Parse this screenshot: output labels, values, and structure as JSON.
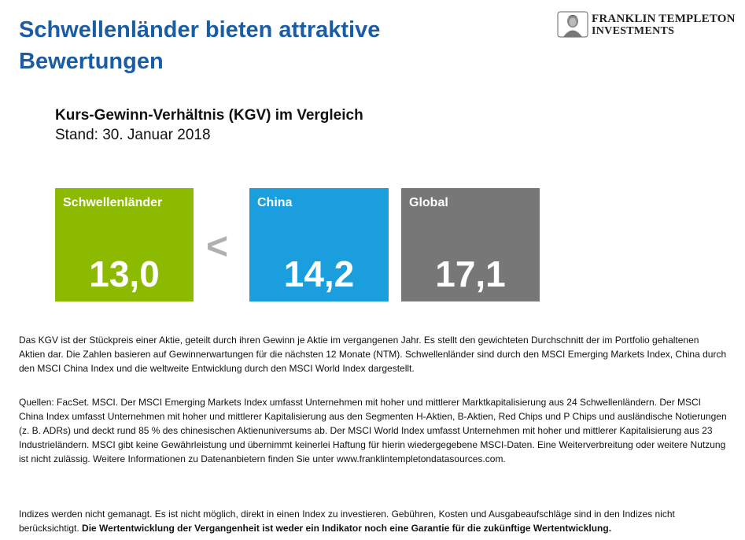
{
  "header": {
    "title": "Schwellenländer bieten attraktive Bewertungen",
    "logo_line1": "FRANKLIN TEMPLETON",
    "logo_line2": "INVESTMENTS"
  },
  "comparison": {
    "subtitle": "Kurs-Gewinn-Verhältnis  (KGV) im Vergleich",
    "stand": "Stand: 30. Januar 2018",
    "less_than": "<",
    "boxes": [
      {
        "label": "Schwellenländer",
        "value": "13,0",
        "color": "#8cba00"
      },
      {
        "label": "China",
        "value": "14,2",
        "color": "#1a9ede"
      },
      {
        "label": "Global",
        "value": "17,1",
        "color": "#777777"
      }
    ]
  },
  "notes": {
    "p1": "Das KGV ist der Stückpreis einer Aktie, geteilt durch ihren Gewinn je Aktie im vergangenen Jahr. Es stellt den gewichteten Durchschnitt der im Portfolio gehaltenen Aktien dar. Die Zahlen basieren auf Gewinnerwartungen für die nächsten 12 Monate (NTM).  Schwellenländer sind durch den MSCI Emerging Markets Index, China durch den MSCI China Index und die weltweite Entwicklung durch den MSCI World Index dargestellt.",
    "p2": "Quellen: FacSet. MSCI. Der MSCI Emerging Markets Index umfasst Unternehmen mit hoher und mittlerer Marktkapitalisierung aus 24 Schwellenländern. Der MSCI China Index umfasst Unternehmen mit hoher und mittlerer Kapitalisierung aus den Segmenten H-Aktien, B-Aktien, Red Chips und P Chips und ausländische Notierungen (z. B. ADRs) und deckt rund 85 % des chinesischen Aktienuniversums ab. Der MSCI World Index umfasst Unternehmen mit hoher und mittlerer Kapitalisierung aus 23 Industrieländern. MSCI gibt keine Gewährleistung und übernimmt keinerlei Haftung für hierin wiedergegebene MSCI-Daten.  Eine Weiterverbreitung oder weitere Nutzung ist nicht zulässig. Weitere Informationen zu Datenanbietern finden Sie unter www.franklintempletondatasources.com.",
    "p3_normal": "Indizes werden nicht gemanagt. Es ist nicht möglich, direkt in einen Index zu investieren. Gebühren, Kosten und Ausgabeaufschläge sind in den Indizes nicht berücksichtigt. ",
    "p3_bold": "Die Wertentwicklung  der Vergangenheit  ist weder ein Indikator noch eine Garantie für die zukünftige Wertentwicklung."
  }
}
